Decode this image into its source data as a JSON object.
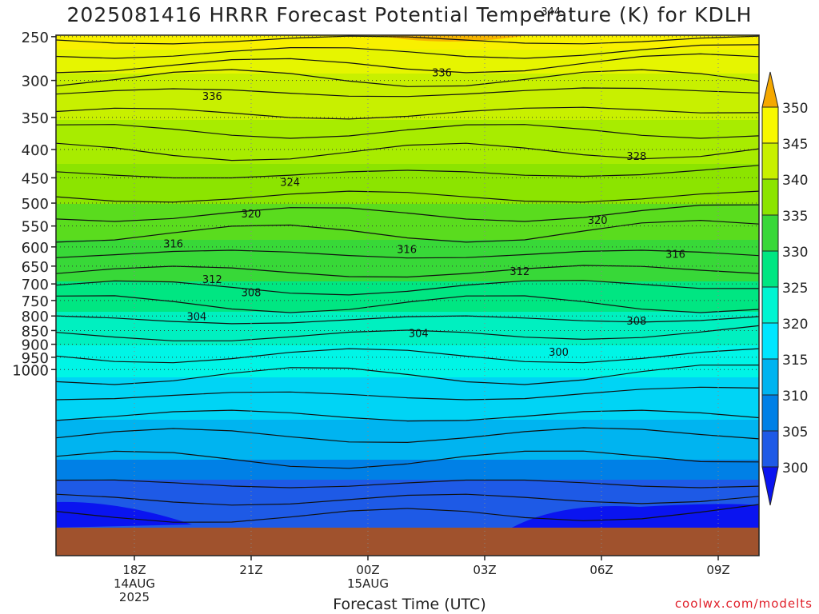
{
  "chart_data": {
    "type": "contour",
    "title": "2025081416 HRRR Forecast Potential Temperature (K) for KDLH",
    "xlabel": "Forecast Time (UTC)",
    "credit": "coolwx.com/modelts",
    "y_ticks": [
      250,
      300,
      350,
      400,
      450,
      500,
      550,
      600,
      650,
      700,
      750,
      800,
      850,
      900,
      950,
      1000
    ],
    "x_ticks": [
      {
        "label": "18Z",
        "sub": [
          "14AUG",
          "2025"
        ]
      },
      {
        "label": "21Z",
        "sub": []
      },
      {
        "label": "00Z",
        "sub": [
          "15AUG"
        ]
      },
      {
        "label": "03Z",
        "sub": []
      },
      {
        "label": "06Z",
        "sub": []
      },
      {
        "label": "09Z",
        "sub": []
      }
    ],
    "colorbar": {
      "labels": [
        350,
        345,
        340,
        335,
        330,
        325,
        320,
        315,
        310,
        305,
        300
      ],
      "colors": [
        "#f5a800",
        "#f8f800",
        "#c8f000",
        "#8ce400",
        "#38d838",
        "#00e682",
        "#00f5d2",
        "#00e6ff",
        "#00b4f0",
        "#0080e6",
        "#1e5ae6",
        "#0a14f0"
      ]
    },
    "contour_labels": [
      {
        "text": "344",
        "x_hour": 4.7,
        "p": 225
      },
      {
        "text": "336",
        "x_hour": 1.9,
        "p": 290
      },
      {
        "text": "336",
        "x_hour": 20.0,
        "p": 320
      },
      {
        "text": "328",
        "x_hour": 6.9,
        "p": 411
      },
      {
        "text": "324",
        "x_hour": 22.0,
        "p": 458
      },
      {
        "text": "320",
        "x_hour": 21.0,
        "p": 522
      },
      {
        "text": "320",
        "x_hour": 5.9,
        "p": 536
      },
      {
        "text": "316",
        "x_hour": 19.0,
        "p": 591
      },
      {
        "text": "316",
        "x_hour": 1.0,
        "p": 605
      },
      {
        "text": "316",
        "x_hour": 7.9,
        "p": 618
      },
      {
        "text": "312",
        "x_hour": 20.0,
        "p": 686
      },
      {
        "text": "312",
        "x_hour": 3.9,
        "p": 663
      },
      {
        "text": "308",
        "x_hour": 21.0,
        "p": 724
      },
      {
        "text": "308",
        "x_hour": 6.9,
        "p": 815
      },
      {
        "text": "304",
        "x_hour": 19.6,
        "p": 801
      },
      {
        "text": "304",
        "x_hour": 1.3,
        "p": 859
      },
      {
        "text": "300",
        "x_hour": 4.9,
        "p": 929
      }
    ]
  }
}
